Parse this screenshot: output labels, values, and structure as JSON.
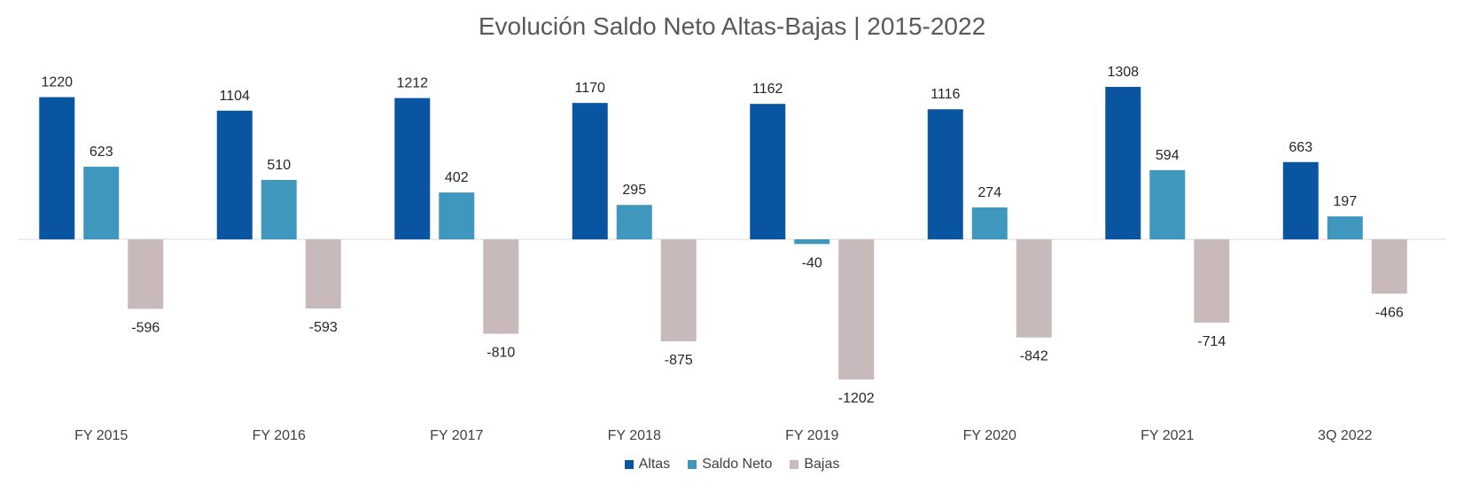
{
  "chart_data": {
    "type": "bar",
    "title": "Evolución Saldo Neto Altas-Bajas | 2015-2022",
    "categories": [
      "FY 2015",
      "FY 2016",
      "FY 2017",
      "FY 2018",
      "FY 2019",
      "FY 2020",
      "FY 2021",
      "3Q 2022"
    ],
    "series": [
      {
        "name": "Altas",
        "color": "#0a55a1",
        "values": [
          1220,
          1104,
          1212,
          1170,
          1162,
          1116,
          1308,
          663
        ]
      },
      {
        "name": "Saldo Neto",
        "color": "#3f97bd",
        "values": [
          623,
          510,
          402,
          295,
          -40,
          274,
          594,
          197
        ]
      },
      {
        "name": "Bajas",
        "color": "#c8b9ba",
        "values": [
          -596,
          -593,
          -810,
          -875,
          -1202,
          -842,
          -714,
          -466
        ]
      }
    ],
    "legend_position": "bottom",
    "grid": false,
    "xlabel": "",
    "ylabel": ""
  }
}
